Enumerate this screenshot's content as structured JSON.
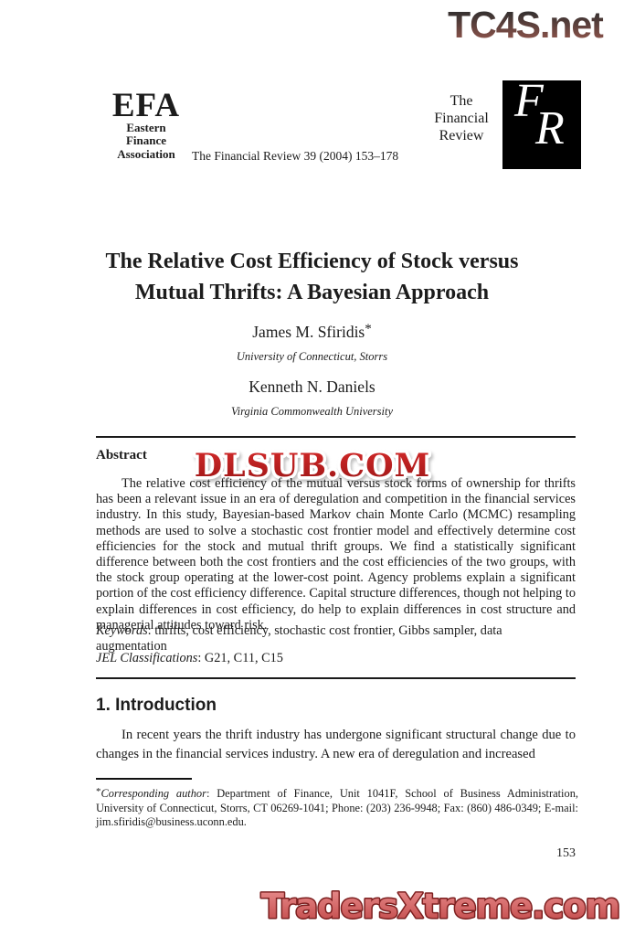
{
  "watermarks": {
    "top": "TC4S.net",
    "middle": "DLSUB.COM",
    "bottom": "TradersXtreme.com"
  },
  "header": {
    "efa": {
      "acronym": "EFA",
      "line1": "Eastern",
      "line2": "Finance",
      "line3": "Association"
    },
    "journal_citation": "The Financial Review 39 (2004) 153–178",
    "journal_name": {
      "line1": "The",
      "line2": "Financial",
      "line3": "Review"
    },
    "fr_logo": {
      "f": "F",
      "r": "R"
    }
  },
  "article": {
    "title_line1": "The Relative Cost Efficiency of Stock versus",
    "title_line2": "Mutual Thrifts: A Bayesian Approach",
    "authors": [
      {
        "name": "James M. Sfiridis",
        "mark": "*",
        "affiliation": "University of Connecticut, Storrs"
      },
      {
        "name": "Kenneth N. Daniels",
        "mark": "",
        "affiliation": "Virginia Commonwealth University"
      }
    ]
  },
  "abstract": {
    "heading": "Abstract",
    "body": "The relative cost efficiency of the mutual versus stock forms of ownership for thrifts has been a relevant issue in an era of deregulation and competition in the financial services industry. In this study, Bayesian-based Markov chain Monte Carlo (MCMC) resampling methods are used to solve a stochastic cost frontier model and effectively determine cost efficiencies for the stock and mutual thrift groups. We find a statistically significant difference between both the cost frontiers and the cost efficiencies of the two groups, with the stock group operating at the lower-cost point. Agency problems explain a significant portion of the cost efficiency difference. Capital structure differences, though not helping to explain differences in cost efficiency, do help to explain differences in cost structure and managerial attitudes toward risk.",
    "keywords_label": "Keywords",
    "keywords_rest": ": thrifts, cost efficiency, stochastic cost frontier, Gibbs sampler, data augmentation",
    "jel_label": "JEL Classifications",
    "jel_rest": ": G21, C11, C15"
  },
  "section": {
    "heading": "1. Introduction",
    "paragraph": "In recent years the thrift industry has undergone significant structural change due to changes in the financial services industry. A new era of deregulation and increased"
  },
  "footnote": {
    "mark": "*",
    "label": "Corresponding author",
    "rest": ": Department of Finance, Unit 1041F, School of Business Administration, University of Connecticut, Storrs, CT 06269-1041; Phone: (203) 236-9948; Fax: (860) 486-0349; E-mail: jim.sfiridis@business.uconn.edu."
  },
  "page_number": "153",
  "colors": {
    "dlsub_red_top": "#d42a2a",
    "dlsub_red_bottom": "#9c1515",
    "traders_red_top": "#e98f8f",
    "traders_red_bottom": "#c04545",
    "traders_outline": "#7d2020",
    "tc4s_top": "#2e2e2e",
    "tc4s_bottom": "#9e5a50",
    "fr_box": "#000000"
  }
}
